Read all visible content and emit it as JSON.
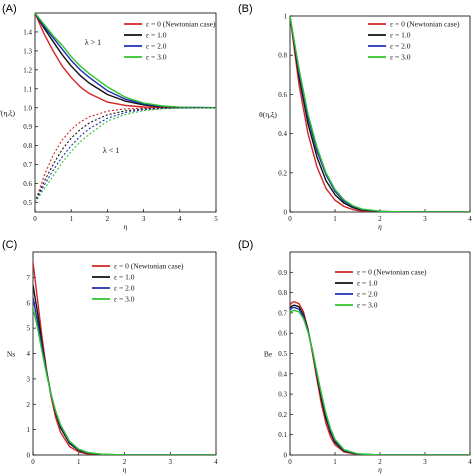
{
  "chart_data": [
    {
      "id": "A",
      "panel_label": "(A)",
      "type": "line",
      "xlabel": "η",
      "ylabel": "f'(η,ξ)",
      "xlim": [
        0,
        5
      ],
      "ylim": [
        0.45,
        1.5
      ],
      "xticks": [
        "0",
        "1",
        "2",
        "3",
        "4",
        "5"
      ],
      "xtick_values": [
        0,
        1,
        2,
        3,
        4,
        5
      ],
      "yticks": [
        "0.5",
        "0.6",
        "0.7",
        "0.8",
        "0.9",
        "1.0",
        "1.1",
        "1.2",
        "1.3",
        "1.4"
      ],
      "ytick_values": [
        0.5,
        0.6,
        0.7,
        0.8,
        0.9,
        1.0,
        1.1,
        1.2,
        1.3,
        1.4
      ],
      "legend_position": "top-right",
      "annotations": [
        {
          "text": "λ > 1",
          "x": 1.6,
          "y": 1.33
        },
        {
          "text": "λ < 1",
          "x": 2.1,
          "y": 0.76
        }
      ],
      "series": [
        {
          "name": "ε = 0 (Newtonian case)",
          "color": "#d42525",
          "dash": "solid",
          "x": [
            0,
            0.25,
            0.5,
            0.75,
            1,
            1.25,
            1.5,
            2,
            2.5,
            3,
            3.5,
            4,
            5
          ],
          "y": [
            1.5,
            1.39,
            1.3,
            1.22,
            1.16,
            1.11,
            1.075,
            1.03,
            1.012,
            1.004,
            1.001,
            1.0,
            1.0
          ]
        },
        {
          "name": "ε = 1.0",
          "color": "#111111",
          "dash": "solid",
          "x": [
            0,
            0.25,
            0.5,
            0.75,
            1,
            1.25,
            1.5,
            2,
            2.5,
            3,
            3.5,
            4,
            5
          ],
          "y": [
            1.5,
            1.42,
            1.35,
            1.28,
            1.22,
            1.17,
            1.13,
            1.07,
            1.035,
            1.015,
            1.005,
            1.001,
            1.0
          ]
        },
        {
          "name": "ε = 2.0",
          "color": "#1f2fb8",
          "dash": "solid",
          "x": [
            0,
            0.25,
            0.5,
            0.75,
            1,
            1.25,
            1.5,
            2,
            2.5,
            3,
            3.5,
            4,
            5
          ],
          "y": [
            1.5,
            1.43,
            1.37,
            1.31,
            1.25,
            1.2,
            1.16,
            1.09,
            1.045,
            1.02,
            1.008,
            1.002,
            1.0
          ]
        },
        {
          "name": "ε = 3.0",
          "color": "#2ec42e",
          "dash": "solid",
          "x": [
            0,
            0.25,
            0.5,
            0.75,
            1,
            1.25,
            1.5,
            2,
            2.5,
            3,
            3.5,
            4,
            5
          ],
          "y": [
            1.5,
            1.44,
            1.38,
            1.33,
            1.27,
            1.22,
            1.18,
            1.11,
            1.055,
            1.025,
            1.01,
            1.003,
            1.0
          ]
        },
        {
          "name": "",
          "color": "#d42525",
          "dash": "dotted",
          "x": [
            0,
            0.25,
            0.5,
            0.75,
            1,
            1.25,
            1.5,
            2,
            2.5,
            3,
            3.5,
            4,
            5
          ],
          "y": [
            0.5,
            0.64,
            0.75,
            0.83,
            0.885,
            0.925,
            0.952,
            0.982,
            0.994,
            0.998,
            1.0,
            1.0,
            1.0
          ]
        },
        {
          "name": "",
          "color": "#111111",
          "dash": "dotted",
          "x": [
            0,
            0.25,
            0.5,
            0.75,
            1,
            1.25,
            1.5,
            2,
            2.5,
            3,
            3.5,
            4,
            5
          ],
          "y": [
            0.5,
            0.61,
            0.7,
            0.78,
            0.84,
            0.885,
            0.92,
            0.963,
            0.984,
            0.994,
            0.998,
            1.0,
            1.0
          ]
        },
        {
          "name": "",
          "color": "#1f2fb8",
          "dash": "dotted",
          "x": [
            0,
            0.25,
            0.5,
            0.75,
            1,
            1.25,
            1.5,
            2,
            2.5,
            3,
            3.5,
            4,
            5
          ],
          "y": [
            0.5,
            0.59,
            0.67,
            0.74,
            0.8,
            0.85,
            0.89,
            0.945,
            0.975,
            0.99,
            0.996,
            0.999,
            1.0
          ]
        },
        {
          "name": "",
          "color": "#2ec42e",
          "dash": "dotted",
          "x": [
            0,
            0.25,
            0.5,
            0.75,
            1,
            1.25,
            1.5,
            2,
            2.5,
            3,
            3.5,
            4,
            5
          ],
          "y": [
            0.5,
            0.57,
            0.64,
            0.71,
            0.77,
            0.82,
            0.86,
            0.93,
            0.965,
            0.985,
            0.994,
            0.998,
            1.0
          ]
        }
      ]
    },
    {
      "id": "B",
      "panel_label": "(B)",
      "type": "line",
      "xlabel": "η",
      "ylabel": "θ(η,ξ)",
      "xlim": [
        0,
        4
      ],
      "ylim": [
        0,
        1
      ],
      "xticks": [
        "0",
        "1",
        "2",
        "3",
        "4"
      ],
      "xtick_values": [
        0,
        1,
        2,
        3,
        4
      ],
      "yticks": [
        "0",
        "0.2",
        "0.4",
        "0.6",
        "0.8",
        "1"
      ],
      "ytick_values": [
        0,
        0.2,
        0.4,
        0.6,
        0.8,
        1
      ],
      "legend_position": "top-right",
      "annotations": [],
      "series": [
        {
          "name": "ε = 0 (Newtonian case)",
          "color": "#d42525",
          "dash": "solid",
          "x": [
            0,
            0.2,
            0.4,
            0.6,
            0.8,
            1.0,
            1.2,
            1.4,
            1.6,
            2,
            2.5,
            3,
            4
          ],
          "y": [
            1,
            0.65,
            0.4,
            0.23,
            0.12,
            0.06,
            0.028,
            0.012,
            0.005,
            0.001,
            0,
            0,
            0
          ]
        },
        {
          "name": "ε = 1.0",
          "color": "#111111",
          "dash": "solid",
          "x": [
            0,
            0.2,
            0.4,
            0.6,
            0.8,
            1.0,
            1.2,
            1.4,
            1.6,
            2,
            2.5,
            3,
            4
          ],
          "y": [
            1,
            0.69,
            0.45,
            0.28,
            0.16,
            0.088,
            0.045,
            0.022,
            0.01,
            0.002,
            0,
            0,
            0
          ]
        },
        {
          "name": "ε = 2.0",
          "color": "#1f2fb8",
          "dash": "solid",
          "x": [
            0,
            0.2,
            0.4,
            0.6,
            0.8,
            1.0,
            1.2,
            1.4,
            1.6,
            2,
            2.5,
            3,
            4
          ],
          "y": [
            1,
            0.71,
            0.48,
            0.31,
            0.19,
            0.105,
            0.055,
            0.028,
            0.013,
            0.003,
            0,
            0,
            0
          ]
        },
        {
          "name": "ε = 3.0",
          "color": "#2ec42e",
          "dash": "solid",
          "x": [
            0,
            0.2,
            0.4,
            0.6,
            0.8,
            1.0,
            1.2,
            1.4,
            1.6,
            2,
            2.5,
            3,
            4
          ],
          "y": [
            1,
            0.73,
            0.5,
            0.33,
            0.2,
            0.115,
            0.062,
            0.032,
            0.015,
            0.004,
            0,
            0,
            0
          ]
        }
      ]
    },
    {
      "id": "C",
      "panel_label": "(C)",
      "type": "line",
      "xlabel": "η",
      "ylabel": "Ns",
      "xlim": [
        0,
        4
      ],
      "ylim": [
        0,
        8
      ],
      "xticks": [
        "0",
        "1",
        "2",
        "3",
        "4"
      ],
      "xtick_values": [
        0,
        1,
        2,
        3,
        4
      ],
      "yticks": [
        "0",
        "1",
        "2",
        "3",
        "4",
        "5",
        "6",
        "7"
      ],
      "ytick_values": [
        0,
        1,
        2,
        3,
        4,
        5,
        6,
        7
      ],
      "legend_position": "top-right",
      "annotations": [],
      "series": [
        {
          "name": "ε = 0 (Newtonian case)",
          "color": "#d42525",
          "dash": "solid",
          "x": [
            0,
            0.1,
            0.2,
            0.3,
            0.4,
            0.5,
            0.6,
            0.8,
            1.0,
            1.2,
            1.5,
            2,
            3,
            4
          ],
          "y": [
            7.6,
            6.1,
            4.6,
            3.3,
            2.25,
            1.45,
            0.9,
            0.33,
            0.12,
            0.04,
            0.01,
            0,
            0,
            0
          ]
        },
        {
          "name": "ε = 1.0",
          "color": "#111111",
          "dash": "solid",
          "x": [
            0,
            0.1,
            0.2,
            0.3,
            0.4,
            0.5,
            0.6,
            0.8,
            1.0,
            1.2,
            1.5,
            2,
            3,
            4
          ],
          "y": [
            6.7,
            5.6,
            4.35,
            3.25,
            2.35,
            1.62,
            1.08,
            0.45,
            0.18,
            0.07,
            0.02,
            0,
            0,
            0
          ]
        },
        {
          "name": "ε = 2.0",
          "color": "#1f2fb8",
          "dash": "solid",
          "x": [
            0,
            0.1,
            0.2,
            0.3,
            0.4,
            0.5,
            0.6,
            0.8,
            1.0,
            1.2,
            1.5,
            2,
            3,
            4
          ],
          "y": [
            6.2,
            5.25,
            4.2,
            3.2,
            2.35,
            1.68,
            1.15,
            0.5,
            0.21,
            0.085,
            0.025,
            0,
            0,
            0
          ]
        },
        {
          "name": "ε = 3.0",
          "color": "#2ec42e",
          "dash": "solid",
          "x": [
            0,
            0.1,
            0.2,
            0.3,
            0.4,
            0.5,
            0.6,
            0.8,
            1.0,
            1.2,
            1.5,
            2,
            3,
            4
          ],
          "y": [
            5.8,
            5.0,
            4.05,
            3.15,
            2.35,
            1.7,
            1.2,
            0.54,
            0.23,
            0.095,
            0.03,
            0,
            0,
            0
          ]
        }
      ]
    },
    {
      "id": "D",
      "panel_label": "(D)",
      "type": "line",
      "xlabel": "η",
      "ylabel": "Be",
      "xlim": [
        0,
        4
      ],
      "ylim": [
        0,
        1
      ],
      "xticks": [
        "0",
        "1",
        "2",
        "3",
        "4"
      ],
      "xtick_values": [
        0,
        1,
        2,
        3,
        4
      ],
      "yticks": [
        "0",
        "0.1",
        "0.2",
        "0.3",
        "0.4",
        "0.5",
        "0.6",
        "0.7",
        "0.8",
        "0.9"
      ],
      "ytick_values": [
        0,
        0.1,
        0.2,
        0.3,
        0.4,
        0.5,
        0.6,
        0.7,
        0.8,
        0.9
      ],
      "legend_position": "top-right",
      "annotations": [],
      "series": [
        {
          "name": "ε = 0 (Newtonian case)",
          "color": "#d42525",
          "dash": "solid",
          "x": [
            0,
            0.05,
            0.1,
            0.2,
            0.3,
            0.4,
            0.5,
            0.6,
            0.7,
            0.8,
            0.9,
            1.0,
            1.2,
            1.5,
            2,
            3,
            4
          ],
          "y": [
            0.74,
            0.752,
            0.755,
            0.745,
            0.705,
            0.62,
            0.5,
            0.37,
            0.25,
            0.155,
            0.09,
            0.05,
            0.015,
            0.003,
            0,
            0,
            0
          ]
        },
        {
          "name": "ε = 1.0",
          "color": "#111111",
          "dash": "solid",
          "x": [
            0,
            0.05,
            0.1,
            0.2,
            0.3,
            0.4,
            0.5,
            0.6,
            0.7,
            0.8,
            0.9,
            1.0,
            1.2,
            1.5,
            2,
            3,
            4
          ],
          "y": [
            0.725,
            0.735,
            0.738,
            0.73,
            0.69,
            0.615,
            0.51,
            0.39,
            0.275,
            0.18,
            0.11,
            0.062,
            0.02,
            0.004,
            0,
            0,
            0
          ]
        },
        {
          "name": "ε = 2.0",
          "color": "#1f2fb8",
          "dash": "solid",
          "x": [
            0,
            0.05,
            0.1,
            0.2,
            0.3,
            0.4,
            0.5,
            0.6,
            0.7,
            0.8,
            0.9,
            1.0,
            1.2,
            1.5,
            2,
            3,
            4
          ],
          "y": [
            0.715,
            0.725,
            0.727,
            0.718,
            0.682,
            0.61,
            0.515,
            0.4,
            0.29,
            0.195,
            0.122,
            0.07,
            0.023,
            0.005,
            0,
            0,
            0
          ]
        },
        {
          "name": "ε = 3.0",
          "color": "#2ec42e",
          "dash": "solid",
          "x": [
            0,
            0.05,
            0.1,
            0.2,
            0.3,
            0.4,
            0.5,
            0.6,
            0.7,
            0.8,
            0.9,
            1.0,
            1.2,
            1.5,
            2,
            3,
            4
          ],
          "y": [
            0.7,
            0.71,
            0.712,
            0.705,
            0.672,
            0.605,
            0.515,
            0.405,
            0.3,
            0.205,
            0.13,
            0.077,
            0.026,
            0.006,
            0,
            0,
            0
          ]
        }
      ]
    }
  ]
}
